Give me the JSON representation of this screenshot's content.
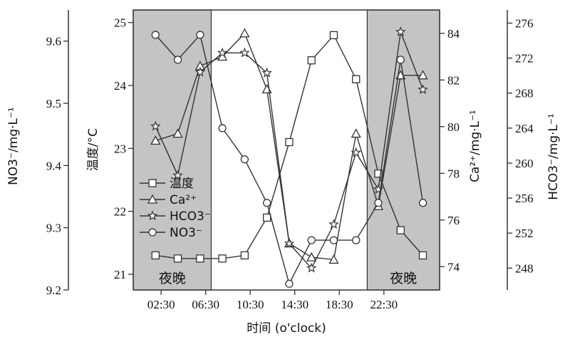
{
  "chart_data": {
    "type": "line",
    "xlabel": "时间 (o'clock)",
    "x_ticks": [
      "02:30",
      "06:30",
      "10:30",
      "14:30",
      "18:30",
      "22:30"
    ],
    "x_tick_hours": [
      2.5,
      6.5,
      10.5,
      14.5,
      18.5,
      22.5
    ],
    "night_label": "夜晚",
    "night_periods": [
      [
        0,
        7
      ],
      [
        21,
        27.5
      ]
    ],
    "axes": {
      "no3": {
        "label": "NO3⁻/mg·L⁻¹",
        "range": [
          9.2,
          9.65
        ],
        "ticks": [
          9.2,
          9.3,
          9.4,
          9.5,
          9.6
        ]
      },
      "temp": {
        "label": "温度/°C",
        "range": [
          20.75,
          25.2
        ],
        "ticks": [
          21,
          22,
          23,
          24,
          25
        ]
      },
      "ca": {
        "label": "Ca²⁺/mg·L⁻¹",
        "range": [
          73.0,
          85.0
        ],
        "ticks": [
          74,
          76,
          78,
          80,
          82,
          84
        ]
      },
      "hco3": {
        "label": "HCO3⁻/mg·L⁻¹",
        "range": [
          245.5,
          277.5
        ],
        "ticks": [
          248,
          252,
          256,
          260,
          264,
          268,
          272,
          276
        ]
      }
    },
    "series": [
      {
        "name": "温度",
        "axis": "temp",
        "marker": "square",
        "x": [
          2,
          4,
          6,
          8,
          10,
          12,
          14,
          16,
          18,
          20,
          22,
          24,
          26
        ],
        "y": [
          21.3,
          21.25,
          21.25,
          21.25,
          21.3,
          21.9,
          23.1,
          24.4,
          24.8,
          24.1,
          22.6,
          21.7,
          21.3
        ]
      },
      {
        "name": "Ca²⁺",
        "axis": "ca",
        "marker": "triangle",
        "x": [
          2,
          4,
          6,
          8,
          10,
          12,
          14,
          16,
          18,
          20,
          22,
          24,
          26
        ],
        "y": [
          79.4,
          79.7,
          82.6,
          83.0,
          84.0,
          81.6,
          75.0,
          74.4,
          74.3,
          79.7,
          76.6,
          82.2,
          82.2
        ]
      },
      {
        "name": "HCO3⁻",
        "axis": "hco3",
        "marker": "star",
        "x": [
          2,
          4,
          6,
          8,
          10,
          12,
          14,
          16,
          18,
          20,
          22,
          24,
          26
        ],
        "y": [
          264.2,
          258.6,
          270.4,
          272.6,
          272.6,
          270.3,
          250.8,
          248.0,
          253.0,
          261.2,
          257.0,
          275.0,
          268.4
        ]
      },
      {
        "name": "NO3⁻",
        "axis": "no3",
        "marker": "circle",
        "x": [
          2,
          4,
          6,
          8,
          10,
          12,
          14,
          16,
          18,
          20,
          22,
          24,
          26
        ],
        "y": [
          9.61,
          9.57,
          9.61,
          9.46,
          9.41,
          9.34,
          9.21,
          9.28,
          9.28,
          9.28,
          9.34,
          9.57,
          9.34
        ]
      }
    ]
  }
}
